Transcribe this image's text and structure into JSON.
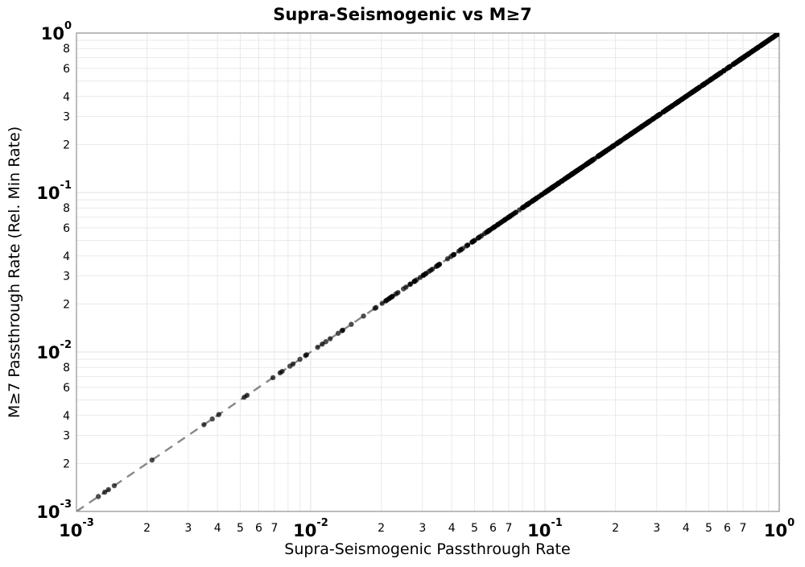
{
  "chart_data": {
    "type": "scatter",
    "title": "Supra-Seismogenic vs M≥7",
    "xlabel": "Supra-Seismogenic Passthrough Rate",
    "ylabel": "M≥7 Passthrough Rate (Rel. Min Rate)",
    "xscale": "log",
    "yscale": "log",
    "xlim": [
      0.001,
      1
    ],
    "ylim": [
      0.001,
      1
    ],
    "grid": true,
    "legend": false,
    "x_major_exponents": [
      -3,
      -2,
      -1,
      0
    ],
    "y_major_exponents": [
      0,
      -1,
      -2,
      -3
    ],
    "x_minor_tick_labels": [
      2,
      3,
      4,
      5,
      6,
      7
    ],
    "y_minor_tick_labels": [
      8,
      6,
      4,
      3,
      2
    ],
    "reference_line": {
      "relation": "y = x",
      "style": "dashed",
      "color": "#878787"
    },
    "series": [
      {
        "name": "passthrough-rates",
        "marker": "circle",
        "color": "#000000",
        "opacity": 0.7,
        "relation": "y = x (all points lie on identity line)",
        "points_x": [
          0.00124,
          0.00132,
          0.00137,
          0.00145,
          0.0021,
          0.0035,
          0.0038,
          0.00405,
          0.0052,
          0.00535,
          0.0069,
          0.0074,
          0.00755,
          0.00815,
          0.0084,
          0.009,
          0.0095,
          0.0096,
          0.0107,
          0.0112,
          0.0116,
          0.0121,
          0.0131,
          0.0136,
          0.0137,
          0.0149,
          0.0168,
          0.0188,
          0.019,
          0.0202,
          0.97,
          0.985,
          1.0
        ],
        "dense_segments": [
          {
            "from": 0.02,
            "to": 0.05,
            "count": 50
          },
          {
            "from": 0.05,
            "to": 0.1,
            "count": 75
          },
          {
            "from": 0.1,
            "to": 1.0,
            "count": 540
          }
        ],
        "seed": 7
      }
    ],
    "colors": {
      "grid_minor": "#e9e9e9",
      "grid_major": "#e2e2e2",
      "spine": "#8f8f8f",
      "tick_major_text": "#000000",
      "tick_minor_text": "#3a3a3a",
      "point": "#000000",
      "dash_line": "#878787",
      "background": "#ffffff"
    }
  }
}
